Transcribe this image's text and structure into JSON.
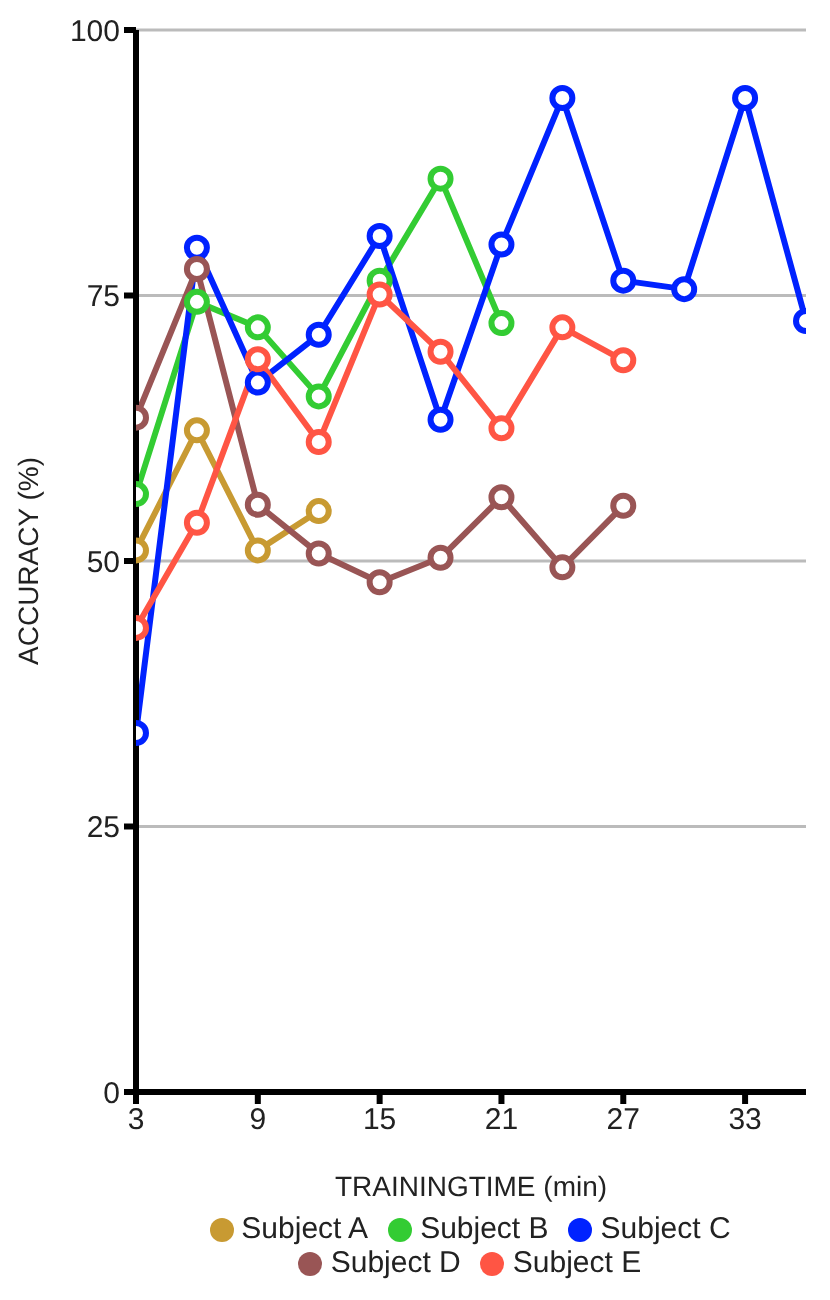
{
  "chart_data": {
    "type": "line",
    "xlabel": "TRAININGTIME (min)",
    "ylabel": "ACCURACY (%)",
    "x": [
      3,
      6,
      9,
      12,
      15,
      18,
      21,
      24,
      27,
      30,
      33,
      36
    ],
    "series": [
      {
        "name": "Subject A",
        "color": "#c89a32",
        "values": [
          51,
          62.3,
          51,
          54.7,
          null,
          null,
          null,
          null,
          null,
          null,
          null,
          null
        ]
      },
      {
        "name": "Subject B",
        "color": "#33cc33",
        "values": [
          56.3,
          74.4,
          72,
          65.5,
          76.4,
          86,
          72.4,
          null,
          null,
          null,
          null,
          null
        ]
      },
      {
        "name": "Subject C",
        "color": "#0022ff",
        "values": [
          33.8,
          79.5,
          66.8,
          71.3,
          80.6,
          63.3,
          79.8,
          93.6,
          76.4,
          75.6,
          93.6,
          72.6
        ]
      },
      {
        "name": "Subject D",
        "color": "#995555",
        "values": [
          63.5,
          77.5,
          55.3,
          50.7,
          48,
          50.3,
          56,
          49.4,
          55.2,
          null,
          null,
          null
        ]
      },
      {
        "name": "Subject E",
        "color": "#ff5544",
        "values": [
          43.7,
          53.6,
          69,
          61.2,
          75.1,
          69.7,
          62.5,
          72,
          68.9,
          null,
          null,
          null
        ]
      }
    ],
    "xlim": [
      3,
      36
    ],
    "xticks": [
      3,
      9,
      15,
      21,
      27,
      33
    ],
    "ylim": [
      0,
      100
    ],
    "yticks": [
      0,
      25,
      50,
      75,
      100
    ],
    "grid": "y",
    "legend": "bottom",
    "marker": "circle",
    "line_style": "solid"
  }
}
